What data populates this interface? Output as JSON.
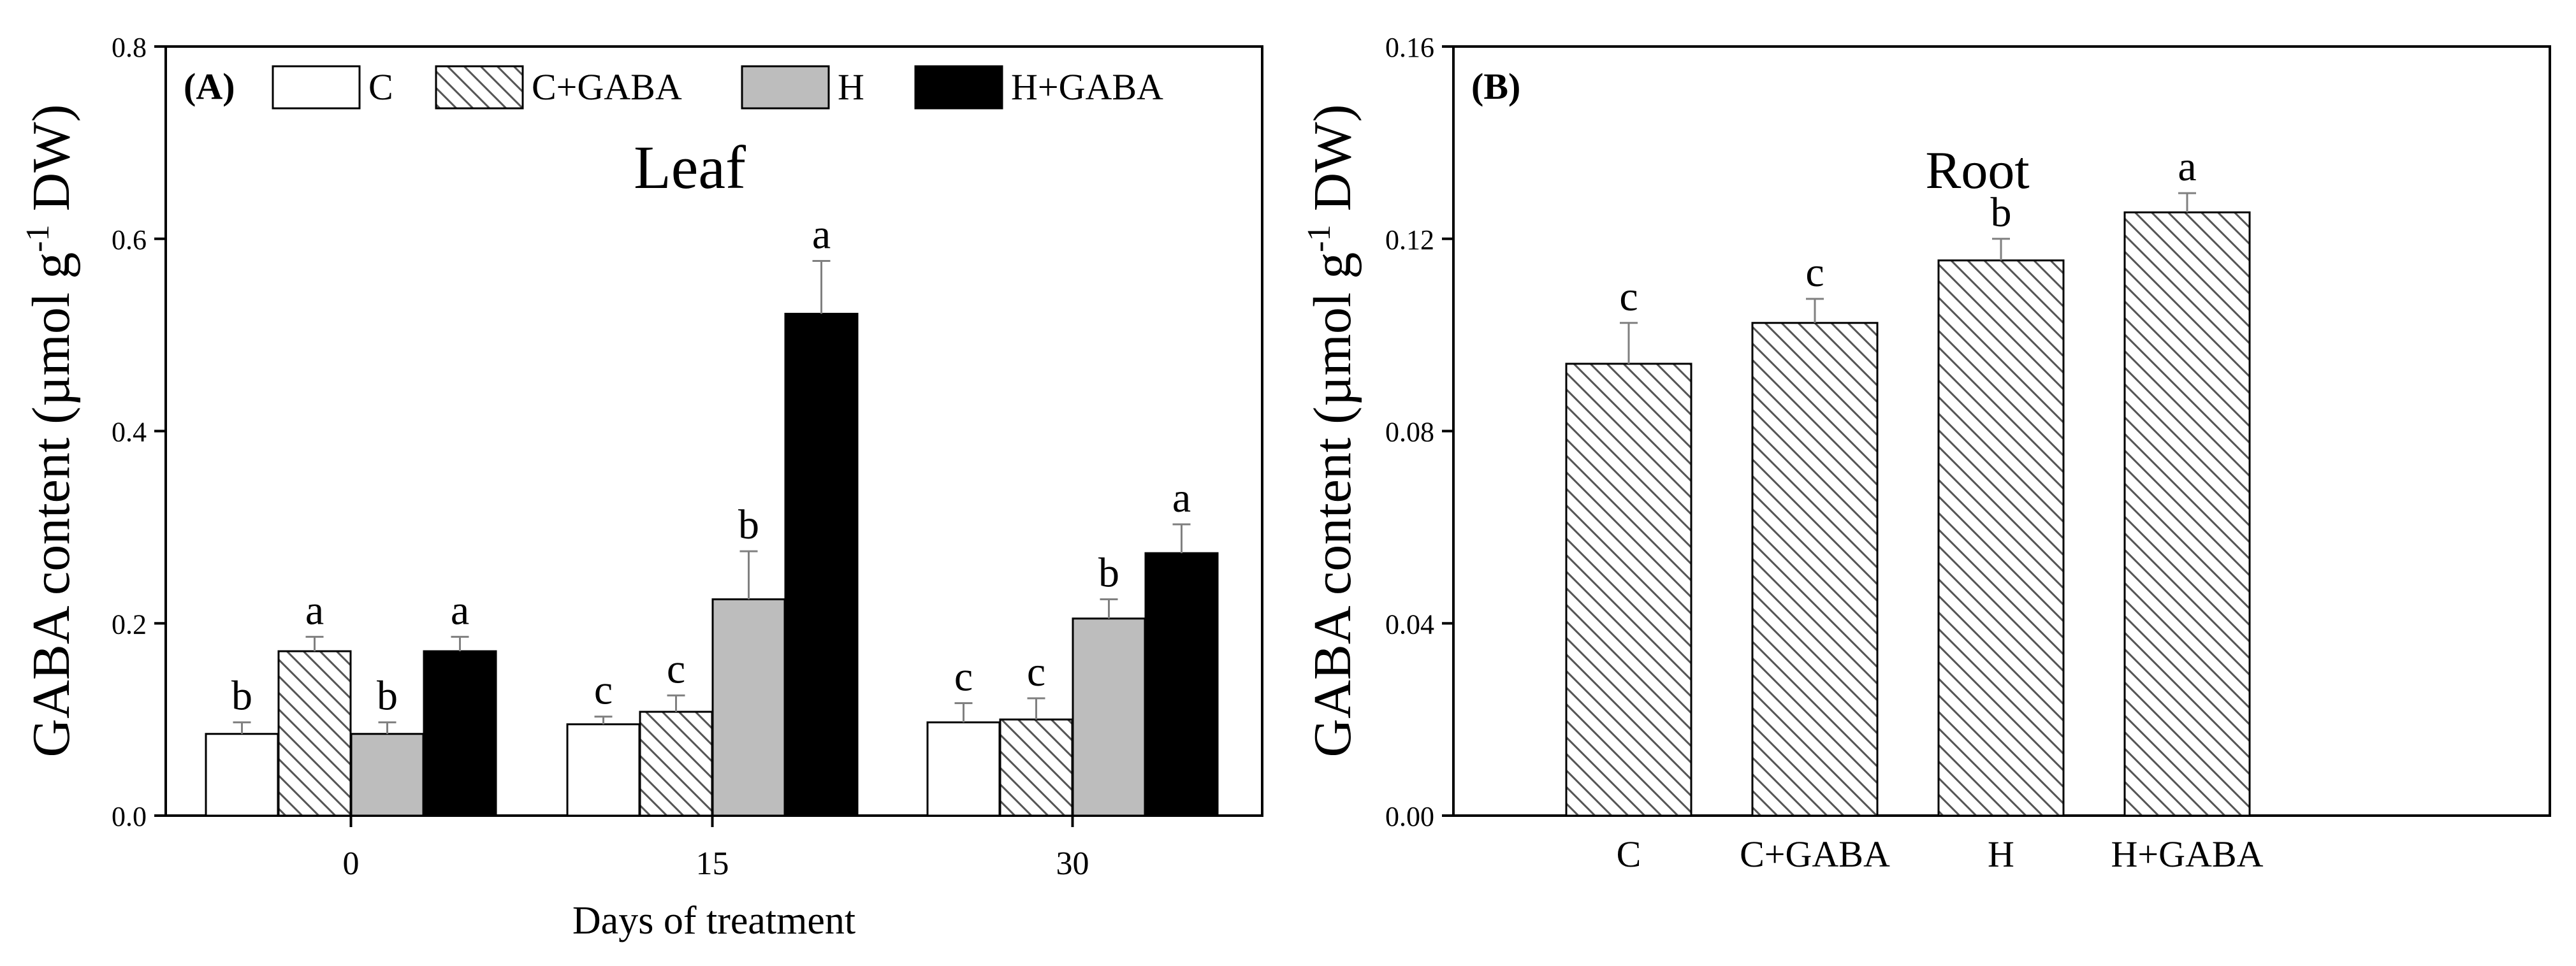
{
  "chart_data": [
    {
      "type": "bar",
      "panel_label": "(A)",
      "title": "Leaf",
      "xlabel": "Days of treatment",
      "ylabel": "GABA content (µmol g",
      "ylabel_superscript": "-1",
      "ylabel_suffix": " DW)",
      "ylim": [
        0,
        0.8
      ],
      "yticks": [
        "0.0",
        "0.2",
        "0.4",
        "0.6",
        "0.8"
      ],
      "categories": [
        "0",
        "15",
        "30"
      ],
      "series": [
        {
          "name": "C",
          "fill": "white",
          "values": [
            0.085,
            0.095,
            0.097
          ],
          "errors": [
            0.012,
            0.008,
            0.02
          ],
          "letters": [
            "b",
            "c",
            "c"
          ]
        },
        {
          "name": "C+GABA",
          "fill": "hatch",
          "values": [
            0.171,
            0.108,
            0.1
          ],
          "errors": [
            0.015,
            0.017,
            0.022
          ],
          "letters": [
            "a",
            "c",
            "c"
          ]
        },
        {
          "name": "H",
          "fill": "gray",
          "values": [
            0.085,
            0.225,
            0.205
          ],
          "errors": [
            0.012,
            0.05,
            0.02
          ],
          "letters": [
            "b",
            "b",
            "b"
          ]
        },
        {
          "name": "H+GABA",
          "fill": "black",
          "values": [
            0.171,
            0.522,
            0.273
          ],
          "errors": [
            0.015,
            0.055,
            0.03
          ],
          "letters": [
            "a",
            "a",
            "a"
          ]
        }
      ],
      "legend": [
        "C",
        "C+GABA",
        "H",
        "H+GABA"
      ],
      "legend_position": "top"
    },
    {
      "type": "bar",
      "panel_label": "(B)",
      "title": "Root",
      "xlabel": "",
      "ylabel": "GABA content (µmol g",
      "ylabel_superscript": "-1",
      "ylabel_suffix": " DW)",
      "ylim": [
        0,
        0.16
      ],
      "yticks": [
        "0.00",
        "0.04",
        "0.08",
        "0.12",
        "0.16"
      ],
      "categories": [
        "C",
        "C+GABA",
        "H",
        "H+GABA"
      ],
      "values": [
        0.094,
        0.1025,
        0.1155,
        0.1255
      ],
      "errors": [
        0.0085,
        0.005,
        0.0045,
        0.004
      ],
      "letters": [
        "c",
        "c",
        "b",
        "a"
      ],
      "fill": "hatch"
    }
  ],
  "colors": {
    "axis": "#000000",
    "bar_white": "#ffffff",
    "bar_gray": "#bdbdbd",
    "bar_black": "#000000",
    "hatch_line": "#555555",
    "error_bar": "#808080"
  }
}
